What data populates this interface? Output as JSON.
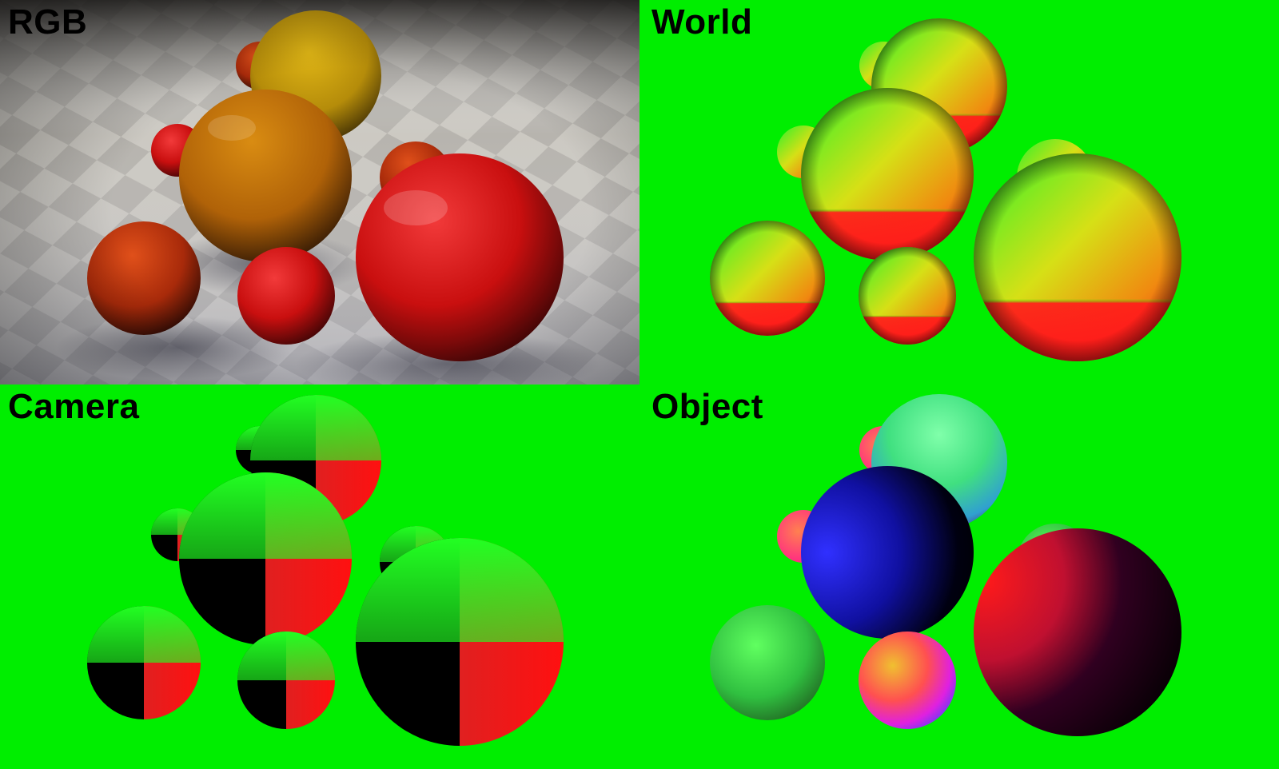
{
  "panels": {
    "rgb": {
      "label": "RGB"
    },
    "world": {
      "label": "World"
    },
    "camera": {
      "label": "Camera"
    },
    "object": {
      "label": "Object"
    }
  },
  "colors": {
    "green_background": "#00ee00",
    "floor_light": "#cfcbc2",
    "floor_dark": "#8f8c88"
  }
}
